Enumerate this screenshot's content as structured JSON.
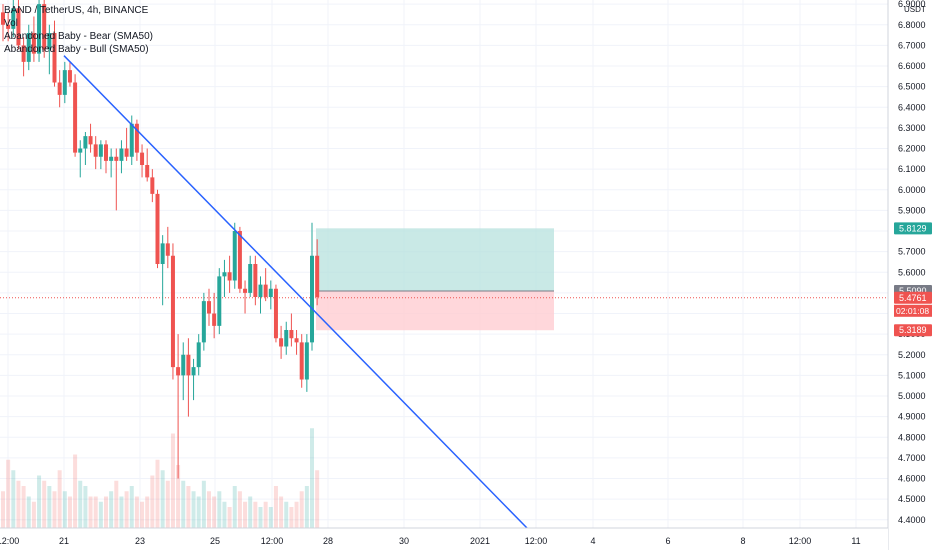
{
  "legend": {
    "symbol_line": "BAND / TetherUS, 4h, BINANCE",
    "indicators": [
      "Vol",
      "Abandoned Baby - Bear (SMA50)",
      "Abandoned Baby - Bull (SMA50)"
    ]
  },
  "price_axis": {
    "currency": "USDT",
    "ticks": [
      "6.9000",
      "6.8000",
      "6.7000",
      "6.6000",
      "6.5000",
      "6.4000",
      "6.3000",
      "6.2000",
      "6.1000",
      "6.0000",
      "5.9000",
      "5.8000",
      "5.7000",
      "5.6000",
      "5.5000",
      "5.4000",
      "5.3000",
      "5.2000",
      "5.1000",
      "5.0000",
      "4.9000",
      "4.8000",
      "4.7000",
      "4.6000",
      "4.5000",
      "4.4000"
    ]
  },
  "time_axis": {
    "ticks": [
      "12:00",
      "21",
      "23",
      "25",
      "12:00",
      "28",
      "30",
      "2021",
      "12:00",
      "4",
      "6",
      "8",
      "12:00",
      "11"
    ]
  },
  "price_labels": {
    "target": "5.8129",
    "last": "5.5090",
    "current": "5.4761",
    "countdown": "02:01:08",
    "stop": "5.3189"
  },
  "colors": {
    "up": "#26a69a",
    "down": "#ef5350",
    "trendline": "#2962ff",
    "target_zone": "#b2dfdb",
    "stop_zone": "#ffcdd2",
    "last_label": "#787b86"
  },
  "chart_data": {
    "type": "candlestick",
    "ylim": [
      4.36,
      6.92
    ],
    "trendline": {
      "from": {
        "date": "Dec 21 00:00",
        "price": 6.65
      },
      "to": {
        "date": "Dec 31 12:00",
        "price": 4.36
      }
    },
    "position": {
      "entry": 5.509,
      "target": 5.8129,
      "stop": 5.3189
    },
    "candles": [
      {
        "o": 6.86,
        "h": 6.9,
        "l": 6.72,
        "c": 6.8,
        "v": 0.35
      },
      {
        "o": 6.8,
        "h": 6.86,
        "l": 6.72,
        "c": 6.78,
        "v": 0.65
      },
      {
        "o": 6.78,
        "h": 6.92,
        "l": 6.74,
        "c": 6.88,
        "v": 0.55
      },
      {
        "o": 6.88,
        "h": 6.92,
        "l": 6.68,
        "c": 6.7,
        "v": 0.45
      },
      {
        "o": 6.7,
        "h": 6.74,
        "l": 6.55,
        "c": 6.62,
        "v": 0.4
      },
      {
        "o": 6.62,
        "h": 6.8,
        "l": 6.58,
        "c": 6.76,
        "v": 0.3
      },
      {
        "o": 6.76,
        "h": 6.84,
        "l": 6.62,
        "c": 6.66,
        "v": 0.25
      },
      {
        "o": 6.66,
        "h": 6.92,
        "l": 6.62,
        "c": 6.9,
        "v": 0.5
      },
      {
        "o": 6.9,
        "h": 6.92,
        "l": 6.64,
        "c": 6.68,
        "v": 0.45
      },
      {
        "o": 6.68,
        "h": 6.8,
        "l": 6.56,
        "c": 6.76,
        "v": 0.4
      },
      {
        "o": 6.76,
        "h": 6.82,
        "l": 6.5,
        "c": 6.52,
        "v": 0.35
      },
      {
        "o": 6.52,
        "h": 6.58,
        "l": 6.4,
        "c": 6.46,
        "v": 0.55
      },
      {
        "o": 6.46,
        "h": 6.62,
        "l": 6.42,
        "c": 6.58,
        "v": 0.35
      },
      {
        "o": 6.58,
        "h": 6.62,
        "l": 6.5,
        "c": 6.52,
        "v": 0.3
      },
      {
        "o": 6.52,
        "h": 6.56,
        "l": 6.16,
        "c": 6.18,
        "v": 0.7
      },
      {
        "o": 6.18,
        "h": 6.24,
        "l": 6.06,
        "c": 6.2,
        "v": 0.45
      },
      {
        "o": 6.2,
        "h": 6.28,
        "l": 6.12,
        "c": 6.26,
        "v": 0.4
      },
      {
        "o": 6.26,
        "h": 6.32,
        "l": 6.18,
        "c": 6.22,
        "v": 0.3
      },
      {
        "o": 6.22,
        "h": 6.26,
        "l": 6.1,
        "c": 6.16,
        "v": 0.3
      },
      {
        "o": 6.16,
        "h": 6.24,
        "l": 6.1,
        "c": 6.22,
        "v": 0.25
      },
      {
        "o": 6.22,
        "h": 6.24,
        "l": 6.08,
        "c": 6.14,
        "v": 0.3
      },
      {
        "o": 6.14,
        "h": 6.2,
        "l": 6.06,
        "c": 6.16,
        "v": 0.35
      },
      {
        "o": 6.16,
        "h": 6.2,
        "l": 5.9,
        "c": 6.14,
        "v": 0.45
      },
      {
        "o": 6.14,
        "h": 6.24,
        "l": 6.08,
        "c": 6.2,
        "v": 0.3
      },
      {
        "o": 6.2,
        "h": 6.3,
        "l": 6.14,
        "c": 6.16,
        "v": 0.35
      },
      {
        "o": 6.16,
        "h": 6.36,
        "l": 6.12,
        "c": 6.32,
        "v": 0.4
      },
      {
        "o": 6.32,
        "h": 6.34,
        "l": 6.14,
        "c": 6.18,
        "v": 0.3
      },
      {
        "o": 6.18,
        "h": 6.22,
        "l": 6.06,
        "c": 6.12,
        "v": 0.25
      },
      {
        "o": 6.12,
        "h": 6.2,
        "l": 6.04,
        "c": 6.06,
        "v": 0.3
      },
      {
        "o": 6.06,
        "h": 6.1,
        "l": 5.94,
        "c": 5.98,
        "v": 0.5
      },
      {
        "o": 5.98,
        "h": 6.0,
        "l": 5.62,
        "c": 5.64,
        "v": 0.65
      },
      {
        "o": 5.64,
        "h": 5.78,
        "l": 5.44,
        "c": 5.74,
        "v": 0.55
      },
      {
        "o": 5.74,
        "h": 5.82,
        "l": 5.62,
        "c": 5.68,
        "v": 0.45
      },
      {
        "o": 5.68,
        "h": 5.74,
        "l": 5.08,
        "c": 5.14,
        "v": 0.9
      },
      {
        "o": 5.14,
        "h": 5.3,
        "l": 4.6,
        "c": 5.1,
        "v": 0.6
      },
      {
        "o": 5.1,
        "h": 5.26,
        "l": 4.98,
        "c": 5.2,
        "v": 0.45
      },
      {
        "o": 5.2,
        "h": 5.28,
        "l": 4.9,
        "c": 5.1,
        "v": 0.4
      },
      {
        "o": 5.1,
        "h": 5.18,
        "l": 4.98,
        "c": 5.14,
        "v": 0.35
      },
      {
        "o": 5.14,
        "h": 5.3,
        "l": 5.1,
        "c": 5.26,
        "v": 0.3
      },
      {
        "o": 5.26,
        "h": 5.5,
        "l": 5.22,
        "c": 5.46,
        "v": 0.45
      },
      {
        "o": 5.46,
        "h": 5.52,
        "l": 5.34,
        "c": 5.4,
        "v": 0.35
      },
      {
        "o": 5.4,
        "h": 5.5,
        "l": 5.28,
        "c": 5.34,
        "v": 0.3
      },
      {
        "o": 5.34,
        "h": 5.62,
        "l": 5.3,
        "c": 5.58,
        "v": 0.35
      },
      {
        "o": 5.58,
        "h": 5.66,
        "l": 5.48,
        "c": 5.6,
        "v": 0.25
      },
      {
        "o": 5.6,
        "h": 5.68,
        "l": 5.5,
        "c": 5.56,
        "v": 0.2
      },
      {
        "o": 5.56,
        "h": 5.84,
        "l": 5.52,
        "c": 5.8,
        "v": 0.4
      },
      {
        "o": 5.8,
        "h": 5.82,
        "l": 5.5,
        "c": 5.52,
        "v": 0.35
      },
      {
        "o": 5.52,
        "h": 5.56,
        "l": 5.4,
        "c": 5.5,
        "v": 0.25
      },
      {
        "o": 5.5,
        "h": 5.68,
        "l": 5.48,
        "c": 5.64,
        "v": 0.3
      },
      {
        "o": 5.64,
        "h": 5.68,
        "l": 5.44,
        "c": 5.48,
        "v": 0.25
      },
      {
        "o": 5.48,
        "h": 5.58,
        "l": 5.4,
        "c": 5.54,
        "v": 0.2
      },
      {
        "o": 5.54,
        "h": 5.62,
        "l": 5.46,
        "c": 5.48,
        "v": 0.25
      },
      {
        "o": 5.48,
        "h": 5.56,
        "l": 5.42,
        "c": 5.52,
        "v": 0.2
      },
      {
        "o": 5.52,
        "h": 5.54,
        "l": 5.26,
        "c": 5.28,
        "v": 0.4
      },
      {
        "o": 5.28,
        "h": 5.34,
        "l": 5.18,
        "c": 5.24,
        "v": 0.3
      },
      {
        "o": 5.24,
        "h": 5.36,
        "l": 5.2,
        "c": 5.32,
        "v": 0.25
      },
      {
        "o": 5.32,
        "h": 5.4,
        "l": 5.24,
        "c": 5.28,
        "v": 0.2
      },
      {
        "o": 5.28,
        "h": 5.32,
        "l": 5.2,
        "c": 5.26,
        "v": 0.25
      },
      {
        "o": 5.26,
        "h": 5.3,
        "l": 5.04,
        "c": 5.08,
        "v": 0.35
      },
      {
        "o": 5.08,
        "h": 5.3,
        "l": 5.02,
        "c": 5.26,
        "v": 0.4
      },
      {
        "o": 5.26,
        "h": 5.84,
        "l": 5.22,
        "c": 5.68,
        "v": 0.95
      },
      {
        "o": 5.68,
        "h": 5.76,
        "l": 5.44,
        "c": 5.48,
        "v": 0.55
      }
    ]
  }
}
